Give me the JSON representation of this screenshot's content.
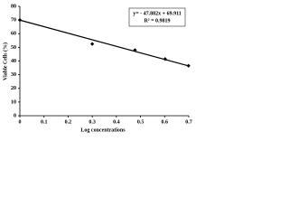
{
  "chart_data": {
    "type": "scatter",
    "x_label": "Log concentrations",
    "y_label": "Viable Cells (%)",
    "x": [
      0,
      0.3,
      0.477,
      0.602,
      0.699
    ],
    "values": [
      70,
      52.5,
      48,
      41.5,
      36.5
    ],
    "color": "#000000",
    "xlim": [
      0,
      0.7
    ],
    "xticks": [
      0,
      0.1,
      0.2,
      0.3,
      0.4,
      0.5,
      0.6,
      0.7
    ],
    "ylim": [
      0,
      80
    ],
    "yticks": [
      0,
      10,
      20,
      30,
      40,
      50,
      60,
      70,
      80
    ],
    "trendline": {
      "slope": -47.882,
      "intercept": 69.911
    },
    "annotations": [
      "y= - 47.882x + 69.911",
      "R² = 0.9819"
    ]
  }
}
